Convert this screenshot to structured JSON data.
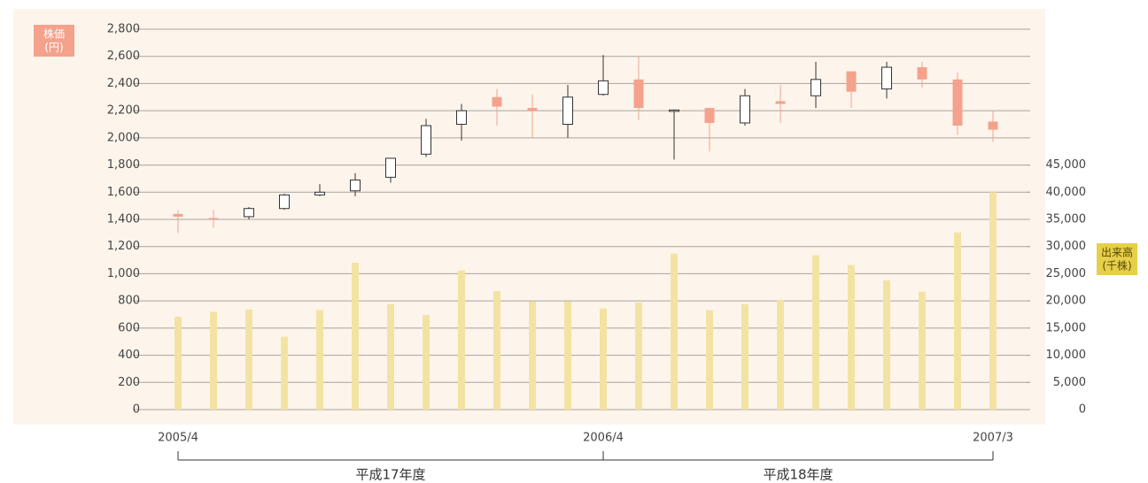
{
  "chart_data": {
    "type": "candlestick",
    "ylabel": [
      "株価",
      "(円)"
    ],
    "y2label": [
      "出来高",
      "(千株)"
    ],
    "categories": [
      "2005/4",
      null,
      null,
      null,
      null,
      null,
      null,
      null,
      null,
      null,
      null,
      null,
      "2006/4",
      null,
      null,
      null,
      null,
      null,
      null,
      null,
      null,
      null,
      null,
      "2007/3"
    ],
    "period_labels": [
      "平成17年度",
      "平成18年度"
    ],
    "price": {
      "open": [
        1440,
        1410,
        1420,
        1480,
        1580,
        1610,
        1710,
        1880,
        2100,
        2300,
        2220,
        2100,
        2320,
        2430,
        2200,
        2220,
        2110,
        2270,
        2310,
        2490,
        2360,
        2520,
        2430,
        2120
      ],
      "high": [
        1470,
        1470,
        1490,
        1590,
        1660,
        1740,
        1850,
        2140,
        2250,
        2360,
        2320,
        2390,
        2610,
        2600,
        2210,
        2220,
        2360,
        2390,
        2560,
        2490,
        2560,
        2560,
        2480,
        2200
      ],
      "low": [
        1300,
        1340,
        1400,
        1470,
        1570,
        1570,
        1670,
        1860,
        1980,
        2090,
        2000,
        2000,
        2310,
        2130,
        1840,
        1900,
        2090,
        2110,
        2220,
        2220,
        2290,
        2370,
        2020,
        1970
      ],
      "close": [
        1420,
        1405,
        1480,
        1580,
        1600,
        1690,
        1850,
        2090,
        2200,
        2230,
        2200,
        2300,
        2420,
        2220,
        2205,
        2110,
        2310,
        2250,
        2430,
        2340,
        2520,
        2430,
        2090,
        2060
      ],
      "up_color": "#ffffff",
      "up_edge": "#333333",
      "down_color": "#f4a28c"
    },
    "volume": {
      "axis": "y2",
      "color": "#f3e3a3",
      "values": [
        17100,
        18000,
        18400,
        13400,
        18300,
        27000,
        19400,
        17400,
        25600,
        21800,
        19900,
        19900,
        18600,
        19700,
        28700,
        18300,
        19400,
        20200,
        28400,
        26600,
        23800,
        21700,
        32600,
        40000
      ]
    },
    "ylim": [
      0,
      2800
    ],
    "yticks": [
      0,
      200,
      400,
      600,
      800,
      {
        "value": 1000,
        "label": "1,000"
      },
      {
        "value": 1200,
        "label": "1,200"
      },
      {
        "value": 1400,
        "label": "1,400"
      },
      {
        "value": 1600,
        "label": "1,600"
      },
      {
        "value": 1800,
        "label": "1,800"
      },
      {
        "value": 2000,
        "label": "2,000"
      },
      {
        "value": 2200,
        "label": "2,200"
      },
      {
        "value": 2400,
        "label": "2,400"
      },
      {
        "value": 2600,
        "label": "2,600"
      },
      {
        "value": 2800,
        "label": "2,800"
      }
    ],
    "y2lim": [
      0,
      70000
    ],
    "y2ticks": [
      0,
      {
        "value": 5000,
        "label": "5,000"
      },
      {
        "value": 10000,
        "label": "10,000"
      },
      {
        "value": 15000,
        "label": "15,000"
      },
      {
        "value": 20000,
        "label": "20,000"
      },
      {
        "value": 25000,
        "label": "25,000"
      },
      {
        "value": 30000,
        "label": "30,000"
      },
      {
        "value": 35000,
        "label": "35,000"
      },
      {
        "value": 40000,
        "label": "40,000"
      },
      {
        "value": 45000,
        "label": "45,000"
      }
    ],
    "grid": true
  }
}
